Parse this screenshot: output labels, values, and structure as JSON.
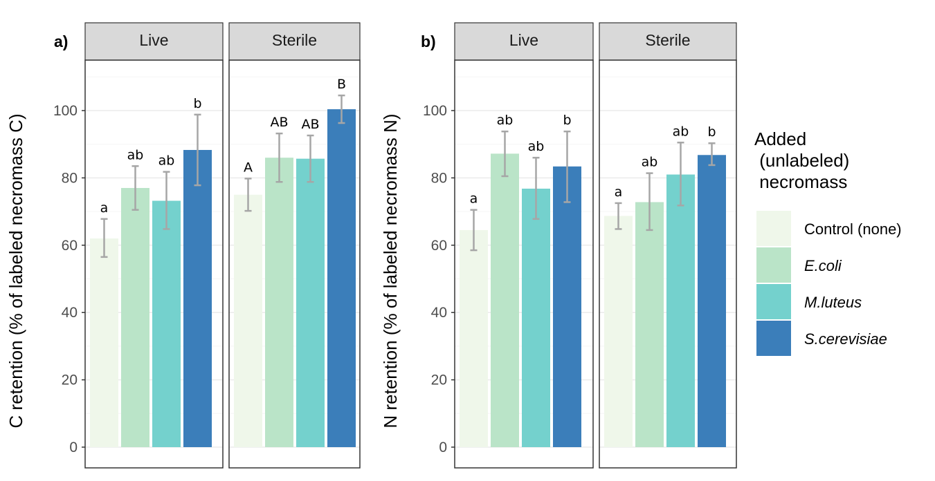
{
  "chart_data": [
    {
      "type": "bar",
      "panel_label": "a)",
      "ylabel": "C retention (% of labeled necromass C)",
      "ylim": [
        0,
        112
      ],
      "yticks": [
        0,
        20,
        40,
        60,
        80,
        100
      ],
      "grid": true,
      "facets": [
        {
          "strip": "Live",
          "values": [
            62,
            77,
            73.2,
            88.3
          ],
          "err_low": [
            56.5,
            70.5,
            64.8,
            77.8
          ],
          "err_high": [
            67.8,
            83.5,
            81.8,
            98.8
          ],
          "letters": [
            "a",
            "ab",
            "ab",
            "b"
          ]
        },
        {
          "strip": "Sterile",
          "values": [
            75,
            86,
            85.7,
            100.4
          ],
          "err_low": [
            70.2,
            78.8,
            78.8,
            96.3
          ],
          "err_high": [
            79.8,
            93.2,
            92.6,
            104.5
          ],
          "letters": [
            "A",
            "AB",
            "AB",
            "B"
          ]
        }
      ]
    },
    {
      "type": "bar",
      "panel_label": "b)",
      "ylabel": "N retention (% of labeled necromass N)",
      "ylim": [
        0,
        112
      ],
      "yticks": [
        0,
        20,
        40,
        60,
        80,
        100
      ],
      "grid": true,
      "facets": [
        {
          "strip": "Live",
          "values": [
            64.5,
            87.2,
            76.8,
            83.4
          ],
          "err_low": [
            58.5,
            80.5,
            67.8,
            72.8
          ],
          "err_high": [
            70.5,
            93.8,
            86,
            93.8
          ],
          "letters": [
            "a",
            "ab",
            "ab",
            "b"
          ]
        },
        {
          "strip": "Sterile",
          "values": [
            68.7,
            72.8,
            81,
            86.8
          ],
          "err_low": [
            64.8,
            64.5,
            71.8,
            83.8
          ],
          "err_high": [
            72.5,
            81.4,
            90.5,
            90.3
          ],
          "letters": [
            "a",
            "ab",
            "ab",
            "b"
          ]
        }
      ]
    }
  ],
  "legend": {
    "title_lines": [
      "Added",
      " (unlabeled)",
      " necromass"
    ],
    "entries": [
      {
        "label": "Control (none)",
        "italic": false,
        "color": "#eff7ea"
      },
      {
        "label": "E.coli",
        "italic": true,
        "color": "#bae4c8"
      },
      {
        "label": "M.luteus",
        "italic": true,
        "color": "#74d1cd"
      },
      {
        "label": "S.cerevisiae",
        "italic": true,
        "color": "#3b7eba"
      }
    ]
  },
  "style": {
    "errorbar_color": "#a6a6a6",
    "strip_fill": "#d9d9d9",
    "panel_border": "#333333",
    "grid_major": "#ebebeb",
    "grid_minor": "#f5f5f5"
  }
}
